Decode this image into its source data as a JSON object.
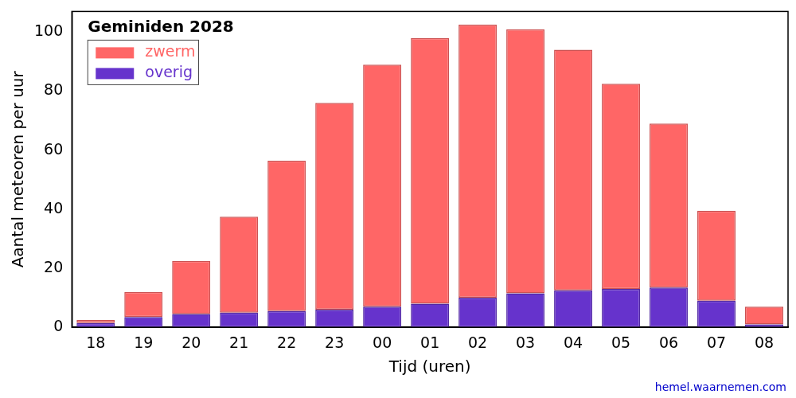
{
  "chart_data": {
    "type": "bar",
    "title": "Geminiden 2028",
    "x_label": "Tijd (uren)",
    "y_label": "Aantal meteoren per uur",
    "categories": [
      "18",
      "19",
      "20",
      "21",
      "22",
      "23",
      "00",
      "01",
      "02",
      "03",
      "04",
      "05",
      "06",
      "07",
      "08"
    ],
    "series": [
      {
        "name": "overig",
        "color": "#6633cc",
        "values": [
          1.5,
          3.5,
          4.5,
          5,
          5.5,
          6,
          7,
          8,
          10,
          11.5,
          12.5,
          13,
          13.5,
          9,
          1
        ]
      },
      {
        "name": "zwerm",
        "color": "#ff6666",
        "values": [
          1,
          8.5,
          18,
          32.5,
          51,
          70,
          82,
          90,
          92.5,
          89.5,
          81.5,
          69.5,
          55.5,
          30.5,
          6
        ]
      }
    ],
    "stacked": true,
    "ylim": [
      0,
      107
    ],
    "yticks": [
      0,
      20,
      40,
      60,
      80,
      100
    ],
    "grid": false,
    "legend": "upper left",
    "annotations": [
      "hemel.waarnemen.com"
    ]
  }
}
